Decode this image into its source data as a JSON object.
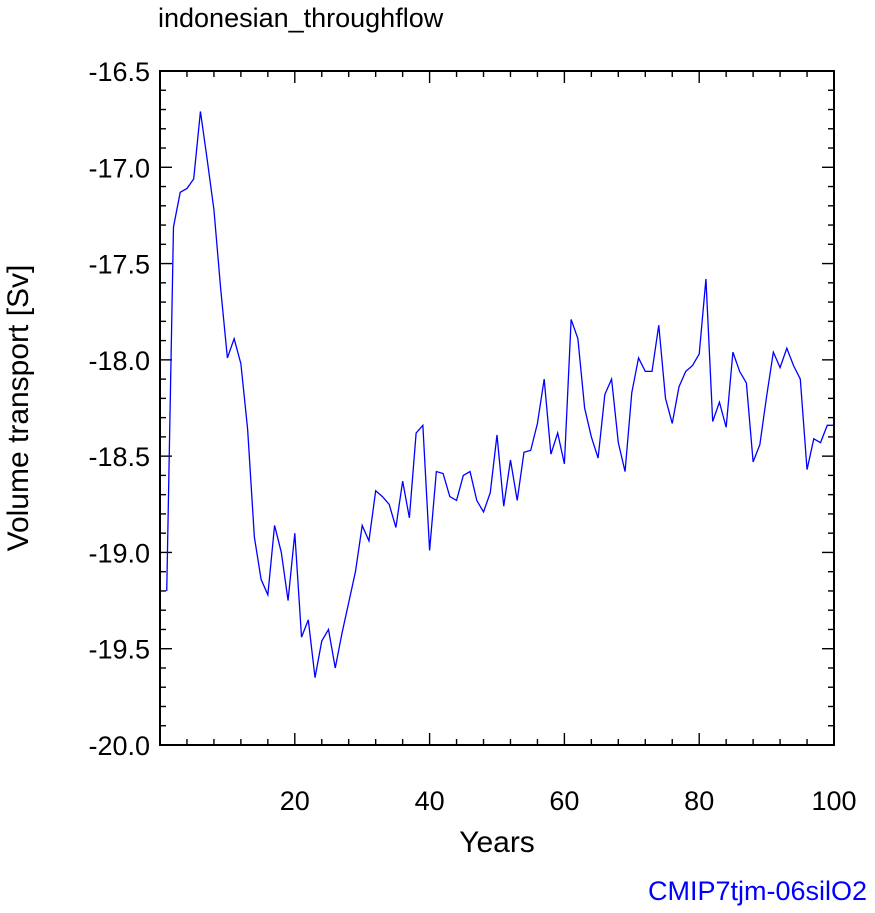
{
  "chart_data": {
    "type": "line",
    "title": "indonesian_throughflow",
    "xlabel": "Years",
    "ylabel": "Volume transport [Sv]",
    "xlim": [
      0,
      100
    ],
    "ylim": [
      -20.0,
      -16.5
    ],
    "xticks": [
      20,
      40,
      60,
      80,
      100
    ],
    "yticks": [
      -16.5,
      -17.0,
      -17.5,
      -18.0,
      -18.5,
      -19.0,
      -19.5,
      -20.0
    ],
    "ytick_labels": [
      "-16.5",
      "-17.0",
      "-17.5",
      "-18.0",
      "-18.5",
      "-19.0",
      "-19.5",
      "-20.0"
    ],
    "grid": false,
    "series": [
      {
        "color": "#0000ff",
        "x": [
          1,
          2,
          3,
          4,
          5,
          6,
          7,
          8,
          9,
          10,
          11,
          12,
          13,
          14,
          15,
          16,
          17,
          18,
          19,
          20,
          21,
          22,
          23,
          24,
          25,
          26,
          27,
          28,
          29,
          30,
          31,
          32,
          33,
          34,
          35,
          36,
          37,
          38,
          39,
          40,
          41,
          42,
          43,
          44,
          45,
          46,
          47,
          48,
          49,
          50,
          51,
          52,
          53,
          54,
          55,
          56,
          57,
          58,
          59,
          60,
          61,
          62,
          63,
          64,
          65,
          66,
          67,
          68,
          69,
          70,
          71,
          72,
          73,
          74,
          75,
          76,
          77,
          78,
          79,
          80,
          81,
          82,
          83,
          84,
          85,
          86,
          87,
          88,
          89,
          90,
          91,
          92,
          93,
          94,
          95,
          96,
          97,
          98,
          99,
          100
        ],
        "y": [
          -19.2,
          -17.31,
          -17.13,
          -17.11,
          -17.06,
          -16.71,
          -16.96,
          -17.22,
          -17.63,
          -17.99,
          -17.89,
          -18.02,
          -18.36,
          -18.92,
          -19.14,
          -19.22,
          -18.86,
          -19.0,
          -19.25,
          -18.9,
          -19.44,
          -19.35,
          -19.65,
          -19.46,
          -19.4,
          -19.6,
          -19.42,
          -19.26,
          -19.1,
          -18.86,
          -18.94,
          -18.68,
          -18.71,
          -18.75,
          -18.87,
          -18.63,
          -18.82,
          -18.38,
          -18.34,
          -18.99,
          -18.58,
          -18.59,
          -18.71,
          -18.73,
          -18.6,
          -18.58,
          -18.73,
          -18.79,
          -18.69,
          -18.39,
          -18.76,
          -18.52,
          -18.73,
          -18.48,
          -18.47,
          -18.33,
          -18.1,
          -18.49,
          -18.38,
          -18.54,
          -17.79,
          -17.89,
          -18.25,
          -18.4,
          -18.51,
          -18.18,
          -18.1,
          -18.43,
          -18.58,
          -18.17,
          -17.99,
          -18.06,
          -18.06,
          -17.82,
          -18.2,
          -18.33,
          -18.14,
          -18.06,
          -18.03,
          -17.97,
          -17.58,
          -18.32,
          -18.22,
          -18.35,
          -17.96,
          -18.06,
          -18.12,
          -18.53,
          -18.44,
          -18.19,
          -17.96,
          -18.04,
          -17.94,
          -18.03,
          -18.1,
          -18.57,
          -18.41,
          -18.43,
          -18.34,
          -18.34
        ]
      }
    ]
  },
  "footer_label": "CMIP7tjm-06silO2"
}
